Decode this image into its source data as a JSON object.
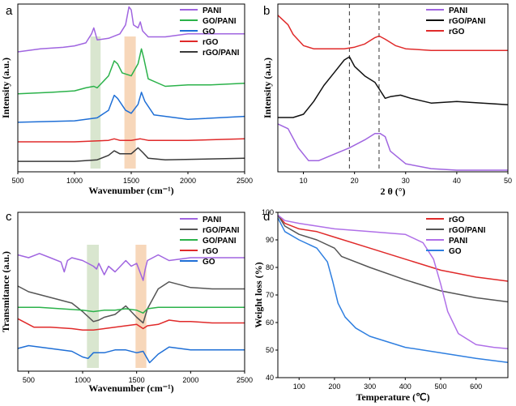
{
  "chart_data": [
    {
      "panel": "a",
      "type": "line",
      "title": "",
      "xlabel": "Wavenumber (cm⁻¹)",
      "ylabel": "Intensity (a.u.)",
      "xlim": [
        500,
        2500
      ],
      "x_ticks": [
        500,
        1000,
        1500,
        2000,
        2500
      ],
      "legend_position": "top-right",
      "highlight_bands": [
        {
          "from": 1140,
          "to": 1230,
          "color": "#cfe0c3"
        },
        {
          "from": 1440,
          "to": 1540,
          "color": "#f5cda9"
        }
      ],
      "series": [
        {
          "name": "PANI",
          "color": "#a065e0",
          "offset": 0.8,
          "x": [
            500,
            700,
            900,
            1000,
            1100,
            1150,
            1170,
            1200,
            1300,
            1400,
            1450,
            1480,
            1500,
            1520,
            1560,
            1580,
            1600,
            1650,
            1800,
            2000,
            2200,
            2500
          ],
          "y": [
            0.0,
            0.02,
            0.03,
            0.04,
            0.06,
            0.12,
            0.16,
            0.08,
            0.09,
            0.12,
            0.18,
            0.3,
            0.28,
            0.18,
            0.16,
            0.2,
            0.14,
            0.1,
            0.1,
            0.12,
            0.12,
            0.12
          ]
        },
        {
          "name": "GO/PANI",
          "color": "#2bb24a",
          "offset": 0.52,
          "x": [
            500,
            800,
            1000,
            1100,
            1170,
            1200,
            1300,
            1350,
            1380,
            1420,
            1500,
            1560,
            1590,
            1610,
            1650,
            1800,
            2000,
            2200,
            2500
          ],
          "y": [
            0.0,
            0.01,
            0.02,
            0.04,
            0.05,
            0.04,
            0.12,
            0.22,
            0.2,
            0.14,
            0.12,
            0.2,
            0.3,
            0.24,
            0.1,
            0.05,
            0.06,
            0.06,
            0.07
          ]
        },
        {
          "name": "GO",
          "color": "#1f6fd6",
          "offset": 0.33,
          "x": [
            500,
            1000,
            1200,
            1300,
            1350,
            1380,
            1450,
            1500,
            1560,
            1590,
            1620,
            1700,
            2000,
            2500
          ],
          "y": [
            0.0,
            0.01,
            0.03,
            0.08,
            0.18,
            0.16,
            0.08,
            0.06,
            0.12,
            0.2,
            0.14,
            0.05,
            0.02,
            0.04
          ]
        },
        {
          "name": "rGO",
          "color": "#e02a2a",
          "offset": 0.2,
          "x": [
            500,
            1000,
            1300,
            1350,
            1400,
            1500,
            1580,
            1650,
            2000,
            2500
          ],
          "y": [
            0.0,
            0.0,
            0.01,
            0.02,
            0.01,
            0.01,
            0.02,
            0.01,
            0.01,
            0.02
          ]
        },
        {
          "name": "rGO/PANI",
          "color": "#3a3a3a",
          "offset": 0.07,
          "x": [
            500,
            1000,
            1200,
            1300,
            1350,
            1400,
            1500,
            1560,
            1600,
            1650,
            1800,
            2500
          ],
          "y": [
            0.0,
            0.0,
            0.01,
            0.04,
            0.07,
            0.05,
            0.05,
            0.09,
            0.06,
            0.02,
            0.01,
            0.02
          ]
        }
      ]
    },
    {
      "panel": "b",
      "type": "line",
      "title": "",
      "xlabel": "2 θ (°)",
      "ylabel": "Intensity (a.u.)",
      "xlim": [
        5,
        50
      ],
      "x_ticks": [
        10,
        20,
        30,
        40,
        50
      ],
      "dashed_lines": [
        19,
        24.8
      ],
      "legend_position": "top-right",
      "series": [
        {
          "name": "PANI",
          "color": "#a065e0",
          "x": [
            5,
            7,
            9,
            11,
            13,
            16,
            19,
            22,
            24,
            25,
            26,
            27,
            30,
            35,
            40,
            45,
            50
          ],
          "y": [
            0.3,
            0.27,
            0.15,
            0.07,
            0.07,
            0.11,
            0.15,
            0.2,
            0.24,
            0.24,
            0.22,
            0.13,
            0.05,
            0.02,
            0.01,
            0.01,
            0.01
          ]
        },
        {
          "name": "rGO/PANI",
          "color": "#111111",
          "x": [
            5,
            8,
            10,
            12,
            14,
            16,
            18,
            19,
            20,
            22,
            24,
            26,
            27,
            29,
            31,
            35,
            40,
            45,
            50
          ],
          "y": [
            0.34,
            0.34,
            0.36,
            0.44,
            0.54,
            0.62,
            0.7,
            0.72,
            0.66,
            0.6,
            0.56,
            0.46,
            0.47,
            0.48,
            0.46,
            0.43,
            0.44,
            0.43,
            0.42
          ]
        },
        {
          "name": "rGO",
          "color": "#e02a2a",
          "x": [
            5,
            6,
            7,
            8,
            10,
            12,
            15,
            18,
            20,
            22,
            24,
            24.8,
            26,
            28,
            30,
            35,
            40,
            45,
            50
          ],
          "y": [
            0.98,
            0.95,
            0.92,
            0.86,
            0.79,
            0.77,
            0.77,
            0.77,
            0.78,
            0.8,
            0.84,
            0.85,
            0.83,
            0.79,
            0.77,
            0.76,
            0.76,
            0.76,
            0.76
          ]
        }
      ]
    },
    {
      "panel": "c",
      "type": "line",
      "title": "",
      "xlabel": "Wavenumber (cm⁻¹)",
      "ylabel": "Transmitance (a.u.)",
      "xlim": [
        400,
        2500
      ],
      "x_ticks": [
        500,
        1000,
        1500,
        2000,
        2500
      ],
      "legend_position": "top-right",
      "highlight_bands": [
        {
          "from": 1040,
          "to": 1150,
          "color": "#cfe0c3"
        },
        {
          "from": 1490,
          "to": 1590,
          "color": "#f5cda9"
        }
      ],
      "series": [
        {
          "name": "PANI",
          "color": "#a065e0",
          "offset": 0.82,
          "x": [
            400,
            500,
            600,
            700,
            800,
            830,
            860,
            900,
            1000,
            1100,
            1130,
            1150,
            1200,
            1240,
            1300,
            1400,
            1450,
            1500,
            1560,
            1580,
            1600,
            1700,
            1800,
            2000,
            2500
          ],
          "y": [
            0.0,
            -0.02,
            0.01,
            -0.02,
            -0.05,
            -0.12,
            -0.04,
            -0.02,
            -0.04,
            -0.08,
            -0.1,
            -0.06,
            -0.14,
            -0.08,
            -0.12,
            -0.04,
            -0.08,
            -0.06,
            -0.18,
            -0.1,
            -0.04,
            0.0,
            -0.04,
            -0.02,
            -0.02
          ]
        },
        {
          "name": "rGO/PANI",
          "color": "#555555",
          "offset": 0.6,
          "x": [
            400,
            500,
            700,
            900,
            1000,
            1100,
            1150,
            1200,
            1300,
            1400,
            1450,
            1500,
            1560,
            1600,
            1700,
            1800,
            2000,
            2200,
            2500
          ],
          "y": [
            0.0,
            -0.04,
            -0.08,
            -0.12,
            -0.18,
            -0.25,
            -0.24,
            -0.22,
            -0.2,
            -0.14,
            -0.18,
            -0.22,
            -0.26,
            -0.16,
            -0.02,
            0.03,
            -0.01,
            -0.02,
            -0.02
          ]
        },
        {
          "name": "GO/PANI",
          "color": "#2bb24a",
          "offset": 0.45,
          "x": [
            400,
            600,
            800,
            1000,
            1100,
            1200,
            1300,
            1400,
            1500,
            1560,
            1600,
            1700,
            1800,
            2000,
            2500
          ],
          "y": [
            0.0,
            0.0,
            -0.01,
            -0.02,
            -0.03,
            -0.02,
            -0.02,
            -0.01,
            -0.02,
            -0.04,
            -0.01,
            0.0,
            0.0,
            0.0,
            0.0
          ]
        },
        {
          "name": "rGO",
          "color": "#e02a2a",
          "offset": 0.35,
          "x": [
            400,
            450,
            550,
            700,
            900,
            1000,
            1100,
            1200,
            1300,
            1400,
            1500,
            1560,
            1600,
            1700,
            1800,
            1900,
            2000,
            2200,
            2500
          ],
          "y": [
            0.02,
            0.0,
            -0.04,
            -0.04,
            -0.05,
            -0.06,
            -0.06,
            -0.05,
            -0.04,
            -0.03,
            -0.02,
            -0.05,
            -0.03,
            -0.02,
            0.01,
            0.0,
            0.0,
            -0.01,
            -0.01
          ]
        },
        {
          "name": "GO",
          "color": "#1f6fd6",
          "offset": 0.16,
          "x": [
            400,
            500,
            700,
            900,
            1000,
            1050,
            1100,
            1200,
            1300,
            1400,
            1500,
            1560,
            1620,
            1700,
            1800,
            2000,
            2200,
            2500
          ],
          "y": [
            0.0,
            0.02,
            0.0,
            -0.02,
            -0.06,
            -0.07,
            -0.03,
            -0.03,
            -0.01,
            -0.01,
            -0.03,
            -0.02,
            -0.1,
            -0.04,
            0.01,
            -0.01,
            -0.01,
            -0.01
          ]
        }
      ]
    },
    {
      "panel": "d",
      "type": "line",
      "title": "",
      "xlabel": "Temperature (℃)",
      "ylabel": "Weight loss (%)",
      "xlim": [
        40,
        690
      ],
      "ylim": [
        40,
        100
      ],
      "x_ticks": [
        100,
        200,
        300,
        400,
        500,
        600
      ],
      "y_ticks": [
        40,
        50,
        60,
        70,
        80,
        90,
        100
      ],
      "legend_position": "top-right",
      "series": [
        {
          "name": "rGO",
          "color": "#e02a2a",
          "x": [
            40,
            60,
            100,
            150,
            200,
            300,
            400,
            500,
            600,
            690
          ],
          "y": [
            99,
            96,
            94,
            93,
            91,
            87,
            83,
            79,
            76.5,
            75
          ]
        },
        {
          "name": "rGO/PANI",
          "color": "#555555",
          "x": [
            40,
            60,
            100,
            150,
            200,
            220,
            300,
            400,
            500,
            600,
            690
          ],
          "y": [
            99,
            95,
            92,
            90,
            87,
            84,
            80,
            75.5,
            71.5,
            69,
            67.5
          ]
        },
        {
          "name": "PANI",
          "color": "#b070e8",
          "x": [
            40,
            60,
            100,
            150,
            200,
            300,
            400,
            450,
            480,
            500,
            520,
            550,
            600,
            650,
            690
          ],
          "y": [
            99,
            97,
            96,
            95,
            94,
            93,
            92,
            89,
            83,
            74,
            64,
            56,
            52,
            51,
            50.5
          ]
        },
        {
          "name": "GO",
          "color": "#2f7fe0",
          "x": [
            40,
            60,
            100,
            150,
            180,
            195,
            210,
            230,
            260,
            300,
            400,
            500,
            600,
            690
          ],
          "y": [
            98,
            93,
            90,
            87,
            82,
            75,
            67,
            62,
            58,
            55,
            51,
            49,
            47,
            45.5
          ]
        }
      ]
    }
  ]
}
